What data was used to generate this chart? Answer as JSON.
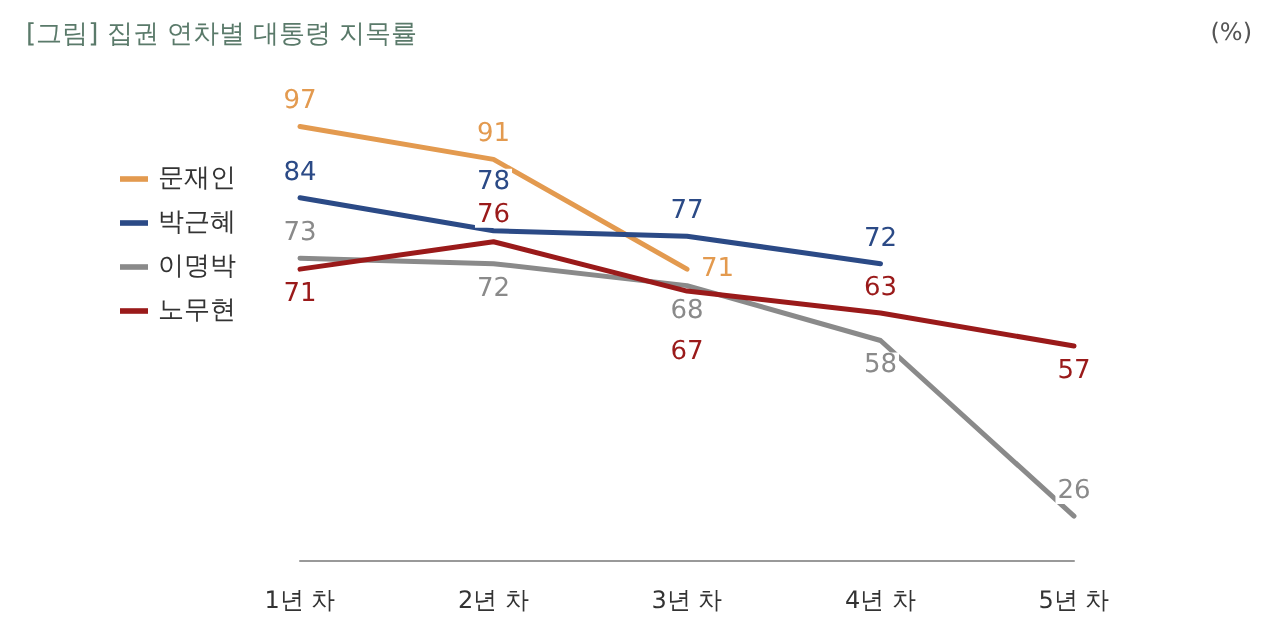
{
  "chart_data": {
    "type": "line",
    "title": "[그림] 집권 연차별 대통령 지목률",
    "annotations": [
      "(%)"
    ],
    "categories": [
      "1년 차",
      "2년 차",
      "3년 차",
      "4년 차",
      "5년 차"
    ],
    "series": [
      {
        "name": "문재인",
        "color": "#e39a4f",
        "values": [
          97,
          91,
          71,
          null,
          null
        ]
      },
      {
        "name": "박근혜",
        "color": "#2b4a86",
        "values": [
          84,
          78,
          77,
          72,
          null
        ]
      },
      {
        "name": "이명박",
        "color": "#8a8a8a",
        "values": [
          73,
          72,
          68,
          58,
          26
        ]
      },
      {
        "name": "노무현",
        "color": "#9a1a1a",
        "values": [
          71,
          76,
          67,
          63,
          57
        ]
      }
    ],
    "data_labels": true,
    "legend": "left",
    "grid": false,
    "marker": "none",
    "line_style": "solid"
  }
}
